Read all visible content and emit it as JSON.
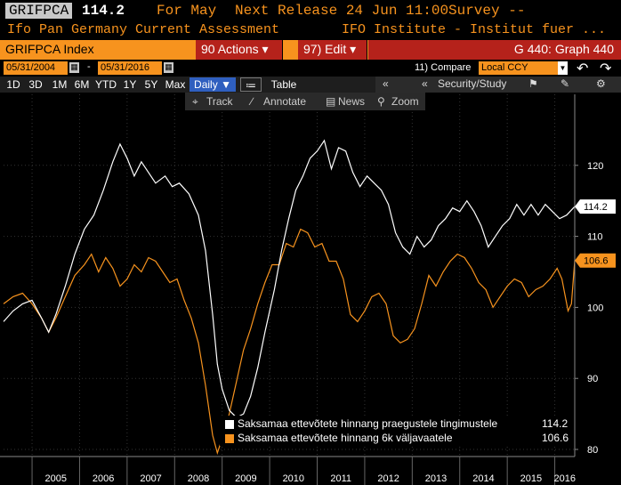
{
  "header": {
    "ticker": "GRIFPCA",
    "price": "114.2",
    "for_label": "For May",
    "next_release": "Next Release 24 Jun 11:00",
    "survey": "Survey --",
    "subtitle_left": "Ifo Pan Germany Current Assessment",
    "subtitle_right": "IFO Institute - Institut fuer ..."
  },
  "toolbar": {
    "index_label": "GRIFPCA Index",
    "actions_label": "90 Actions",
    "edit_label": "97) Edit",
    "graph_label": "G 440: Graph 440"
  },
  "dates": {
    "start": "05/31/2004",
    "end": "05/31/2016",
    "dash": "-",
    "compare_label": "11) Compare",
    "compare_value": "Local CCY"
  },
  "periods": [
    "1D",
    "3D",
    "1M",
    "6M",
    "YTD",
    "1Y",
    "5Y",
    "Max"
  ],
  "frequency": "Daily",
  "view_table": "Table",
  "security_study": "Security/Study",
  "annotate_bar": {
    "track": "Track",
    "annotate": "Annotate",
    "news": "News",
    "zoom": "Zoom"
  },
  "colors": {
    "series1": "#ffffff",
    "series2": "#f7931e",
    "orange": "#f7931e",
    "red": "#b5221b"
  },
  "chart_data": {
    "type": "line",
    "x_axis": {
      "start": 2004.4,
      "end": 2016.42,
      "tick_labels": [
        "2005",
        "2006",
        "2007",
        "2008",
        "2009",
        "2010",
        "2011",
        "2012",
        "2013",
        "2014",
        "2015",
        "2016"
      ]
    },
    "y_axis": {
      "ylim": [
        79,
        130
      ],
      "ticks": [
        80,
        90,
        100,
        110,
        120
      ],
      "position": "right"
    },
    "grid": true,
    "legend_position": "bottom-right",
    "last_value_labels": [
      "114.2",
      "106.6"
    ],
    "series": [
      {
        "name": "Saksamaa ettevõtete hinnang praegustele tingimustele",
        "last": "114.2",
        "color": "#ffffff",
        "points": [
          [
            2004.4,
            98.0
          ],
          [
            2004.6,
            99.5
          ],
          [
            2004.8,
            100.5
          ],
          [
            2005.0,
            101.0
          ],
          [
            2005.2,
            98.5
          ],
          [
            2005.35,
            96.5
          ],
          [
            2005.5,
            99.0
          ],
          [
            2005.7,
            103.0
          ],
          [
            2005.9,
            107.5
          ],
          [
            2006.1,
            111.0
          ],
          [
            2006.3,
            113.0
          ],
          [
            2006.5,
            116.5
          ],
          [
            2006.7,
            120.5
          ],
          [
            2006.85,
            123.0
          ],
          [
            2007.0,
            121.0
          ],
          [
            2007.15,
            118.5
          ],
          [
            2007.3,
            120.5
          ],
          [
            2007.45,
            119.0
          ],
          [
            2007.6,
            117.5
          ],
          [
            2007.8,
            118.5
          ],
          [
            2007.95,
            117.0
          ],
          [
            2008.1,
            117.5
          ],
          [
            2008.3,
            116.0
          ],
          [
            2008.5,
            113.0
          ],
          [
            2008.65,
            108.0
          ],
          [
            2008.8,
            99.0
          ],
          [
            2008.9,
            92.0
          ],
          [
            2009.0,
            88.5
          ],
          [
            2009.15,
            85.5
          ],
          [
            2009.3,
            84.5
          ],
          [
            2009.45,
            85.0
          ],
          [
            2009.6,
            87.5
          ],
          [
            2009.75,
            91.5
          ],
          [
            2009.9,
            96.5
          ],
          [
            2010.1,
            102.5
          ],
          [
            2010.25,
            108.0
          ],
          [
            2010.4,
            112.5
          ],
          [
            2010.55,
            116.5
          ],
          [
            2010.7,
            118.5
          ],
          [
            2010.85,
            121.0
          ],
          [
            2011.0,
            122.0
          ],
          [
            2011.15,
            123.5
          ],
          [
            2011.3,
            119.5
          ],
          [
            2011.45,
            122.5
          ],
          [
            2011.6,
            122.0
          ],
          [
            2011.75,
            119.0
          ],
          [
            2011.9,
            117.0
          ],
          [
            2012.05,
            118.5
          ],
          [
            2012.2,
            117.5
          ],
          [
            2012.35,
            116.5
          ],
          [
            2012.5,
            114.5
          ],
          [
            2012.65,
            110.5
          ],
          [
            2012.8,
            108.5
          ],
          [
            2012.95,
            107.5
          ],
          [
            2013.1,
            110.0
          ],
          [
            2013.25,
            108.5
          ],
          [
            2013.4,
            109.5
          ],
          [
            2013.55,
            111.5
          ],
          [
            2013.7,
            112.5
          ],
          [
            2013.85,
            114.0
          ],
          [
            2014.0,
            113.5
          ],
          [
            2014.15,
            115.0
          ],
          [
            2014.3,
            113.5
          ],
          [
            2014.45,
            111.5
          ],
          [
            2014.6,
            108.5
          ],
          [
            2014.75,
            110.0
          ],
          [
            2014.9,
            111.5
          ],
          [
            2015.05,
            112.5
          ],
          [
            2015.2,
            114.5
          ],
          [
            2015.35,
            113.0
          ],
          [
            2015.5,
            114.5
          ],
          [
            2015.65,
            113.0
          ],
          [
            2015.8,
            114.5
          ],
          [
            2015.95,
            113.5
          ],
          [
            2016.1,
            112.5
          ],
          [
            2016.25,
            113.0
          ],
          [
            2016.42,
            114.2
          ]
        ]
      },
      {
        "name": "Saksamaa ettevõtete hinnang 6k väljavaatele",
        "last": "106.6",
        "color": "#f7931e",
        "points": [
          [
            2004.4,
            100.5
          ],
          [
            2004.6,
            101.5
          ],
          [
            2004.8,
            102.0
          ],
          [
            2005.0,
            100.5
          ],
          [
            2005.2,
            98.5
          ],
          [
            2005.35,
            96.5
          ],
          [
            2005.5,
            98.5
          ],
          [
            2005.7,
            101.5
          ],
          [
            2005.9,
            104.5
          ],
          [
            2006.1,
            106.0
          ],
          [
            2006.25,
            107.5
          ],
          [
            2006.4,
            105.0
          ],
          [
            2006.55,
            107.0
          ],
          [
            2006.7,
            105.5
          ],
          [
            2006.85,
            103.0
          ],
          [
            2007.0,
            104.0
          ],
          [
            2007.15,
            106.0
          ],
          [
            2007.3,
            105.0
          ],
          [
            2007.45,
            107.0
          ],
          [
            2007.6,
            106.5
          ],
          [
            2007.75,
            105.0
          ],
          [
            2007.9,
            103.5
          ],
          [
            2008.05,
            104.0
          ],
          [
            2008.2,
            101.0
          ],
          [
            2008.35,
            98.5
          ],
          [
            2008.5,
            95.0
          ],
          [
            2008.65,
            89.0
          ],
          [
            2008.8,
            82.0
          ],
          [
            2008.9,
            79.5
          ],
          [
            2009.0,
            81.5
          ],
          [
            2009.15,
            85.0
          ],
          [
            2009.3,
            89.5
          ],
          [
            2009.45,
            94.0
          ],
          [
            2009.6,
            97.0
          ],
          [
            2009.75,
            100.5
          ],
          [
            2009.9,
            103.5
          ],
          [
            2010.05,
            106.0
          ],
          [
            2010.2,
            106.0
          ],
          [
            2010.35,
            109.0
          ],
          [
            2010.5,
            108.5
          ],
          [
            2010.65,
            111.0
          ],
          [
            2010.8,
            110.5
          ],
          [
            2010.95,
            108.5
          ],
          [
            2011.1,
            109.0
          ],
          [
            2011.25,
            106.5
          ],
          [
            2011.4,
            106.5
          ],
          [
            2011.55,
            104.0
          ],
          [
            2011.7,
            99.0
          ],
          [
            2011.85,
            98.0
          ],
          [
            2012.0,
            99.5
          ],
          [
            2012.15,
            101.5
          ],
          [
            2012.3,
            102.0
          ],
          [
            2012.45,
            100.5
          ],
          [
            2012.6,
            96.0
          ],
          [
            2012.75,
            95.0
          ],
          [
            2012.9,
            95.5
          ],
          [
            2013.05,
            97.0
          ],
          [
            2013.2,
            100.5
          ],
          [
            2013.35,
            104.5
          ],
          [
            2013.5,
            103.0
          ],
          [
            2013.65,
            105.0
          ],
          [
            2013.8,
            106.5
          ],
          [
            2013.95,
            107.5
          ],
          [
            2014.1,
            107.0
          ],
          [
            2014.25,
            105.5
          ],
          [
            2014.4,
            103.5
          ],
          [
            2014.55,
            102.5
          ],
          [
            2014.7,
            100.0
          ],
          [
            2014.85,
            101.5
          ],
          [
            2015.0,
            103.0
          ],
          [
            2015.15,
            104.0
          ],
          [
            2015.3,
            103.5
          ],
          [
            2015.45,
            101.5
          ],
          [
            2015.6,
            102.5
          ],
          [
            2015.75,
            103.0
          ],
          [
            2015.9,
            104.0
          ],
          [
            2016.05,
            105.5
          ],
          [
            2016.15,
            104.0
          ],
          [
            2016.28,
            99.5
          ],
          [
            2016.35,
            100.5
          ],
          [
            2016.42,
            106.6
          ]
        ]
      }
    ]
  }
}
